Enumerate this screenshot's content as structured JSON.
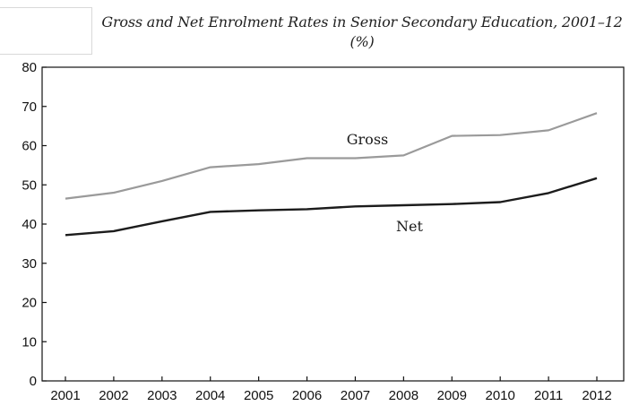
{
  "chart_data": {
    "type": "line",
    "title_line1": "Gross and Net Enrolment Rates in Senior Secondary Education, 2001–12",
    "title_line2": "(%)",
    "categories": [
      "2001",
      "2002",
      "2003",
      "2004",
      "2005",
      "2006",
      "2007",
      "2008",
      "2009",
      "2010",
      "2011",
      "2012"
    ],
    "series": [
      {
        "name": "Gross",
        "color": "#9a9a9a",
        "values": [
          46.5,
          48.0,
          51.0,
          54.5,
          55.3,
          56.8,
          56.8,
          57.5,
          62.5,
          62.7,
          63.9,
          68.3
        ]
      },
      {
        "name": "Net",
        "color": "#1c1c1c",
        "values": [
          37.2,
          38.2,
          40.7,
          43.1,
          43.5,
          43.8,
          44.5,
          44.8,
          45.1,
          45.6,
          47.9,
          51.7
        ]
      }
    ],
    "ylim": [
      0,
      80
    ],
    "yticks": [
      "0",
      "10",
      "20",
      "30",
      "40",
      "50",
      "60",
      "70",
      "80"
    ],
    "xlabel": "",
    "ylabel": "",
    "grid": false
  }
}
